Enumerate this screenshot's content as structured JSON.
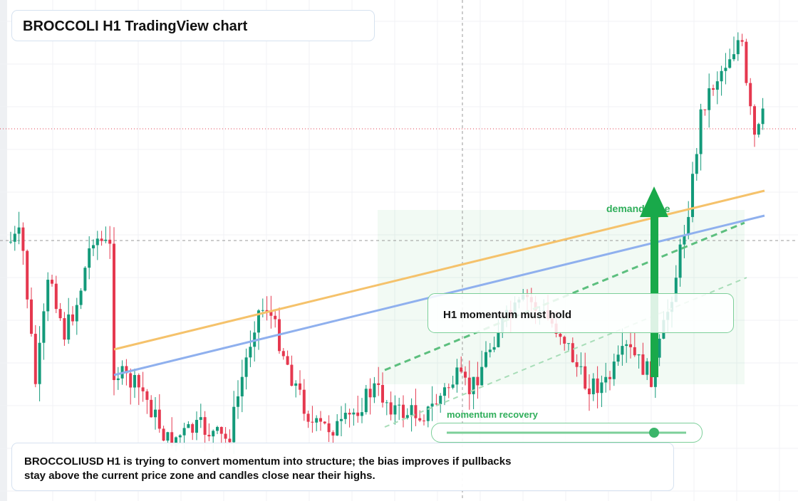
{
  "header": {
    "title": "BROCCOLI H1 TradingView chart"
  },
  "annotations": {
    "zone": "demand zone",
    "callout": "H1 momentum must hold",
    "slider": "momentum recovery"
  },
  "summary": {
    "line1": "BROCCOLIUSD H1 is trying to convert momentum into structure; the bias improves if pullbacks",
    "line2": "stay above the current price zone and candles close near their highs."
  }
}
